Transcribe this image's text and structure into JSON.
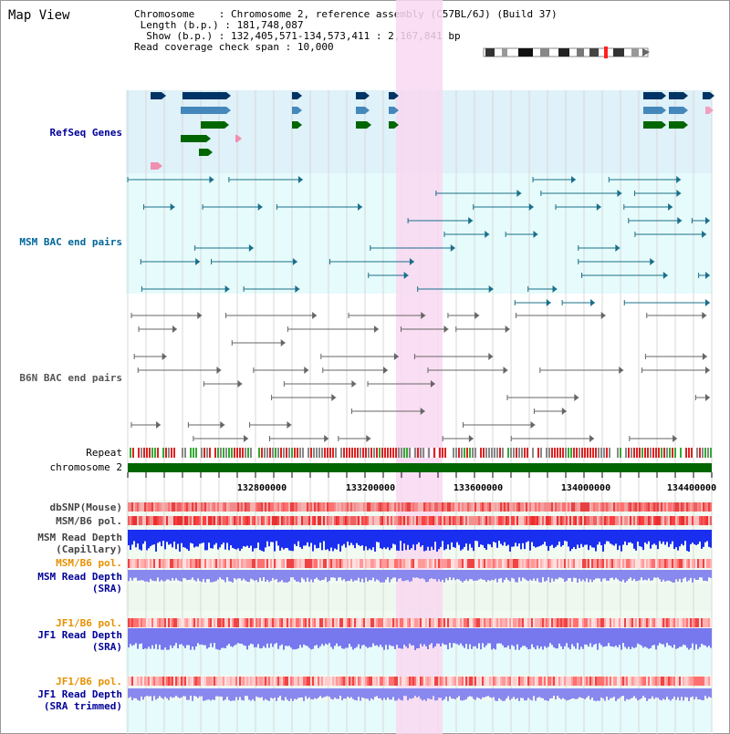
{
  "view_title": "Map View",
  "info": {
    "chromosome_key": "Chromosome",
    "chromosome_value": "Chromosome 2, reference assembly (C57BL/6J) (Build 37)",
    "length_key": "Length (b.p.)",
    "length_value": "181,748,087",
    "show_key": "Show (b.p.)",
    "show_value": "132,405,571-134,573,411 : 2,167,841 bp",
    "coverage_key": "Read coverage check span",
    "coverage_value": "10,000"
  },
  "tracks": {
    "refseq": "RefSeq Genes",
    "msm_bac": "MSM BAC end pairs",
    "b6n_bac": "B6N BAC end pairs",
    "repeat": "Repeat",
    "chromosome": "chromosome 2",
    "dbsnp": "dbSNP(Mouse)",
    "msm_b6_pol": "MSM/B6 pol.",
    "msm_depth_cap": "MSM Read Depth\n(Capillary)",
    "msm_b6_pol2": "MSM/B6 pol.",
    "msm_depth_sra": "MSM Read Depth\n(SRA)",
    "jf1_b6_pol": "JF1/B6 pol.",
    "jf1_depth_sra": "JF1 Read Depth\n(SRA)",
    "jf1_b6_pol2": "JF1/B6 pol.",
    "jf1_depth_trim": "JF1 Read Depth\n(SRA trimmed)"
  },
  "ticks": [
    "132800000",
    "133200000",
    "133600000",
    "134000000",
    "134400000"
  ],
  "colors": {
    "refseq_bg": "#dff1f9",
    "msm_bg": "#e6fbfb",
    "highlight": "#f9d8f1",
    "msm_label": "#006699",
    "refseq_label": "#000099",
    "orange_label": "#e89000",
    "chromosome_bar": "#006600"
  }
}
